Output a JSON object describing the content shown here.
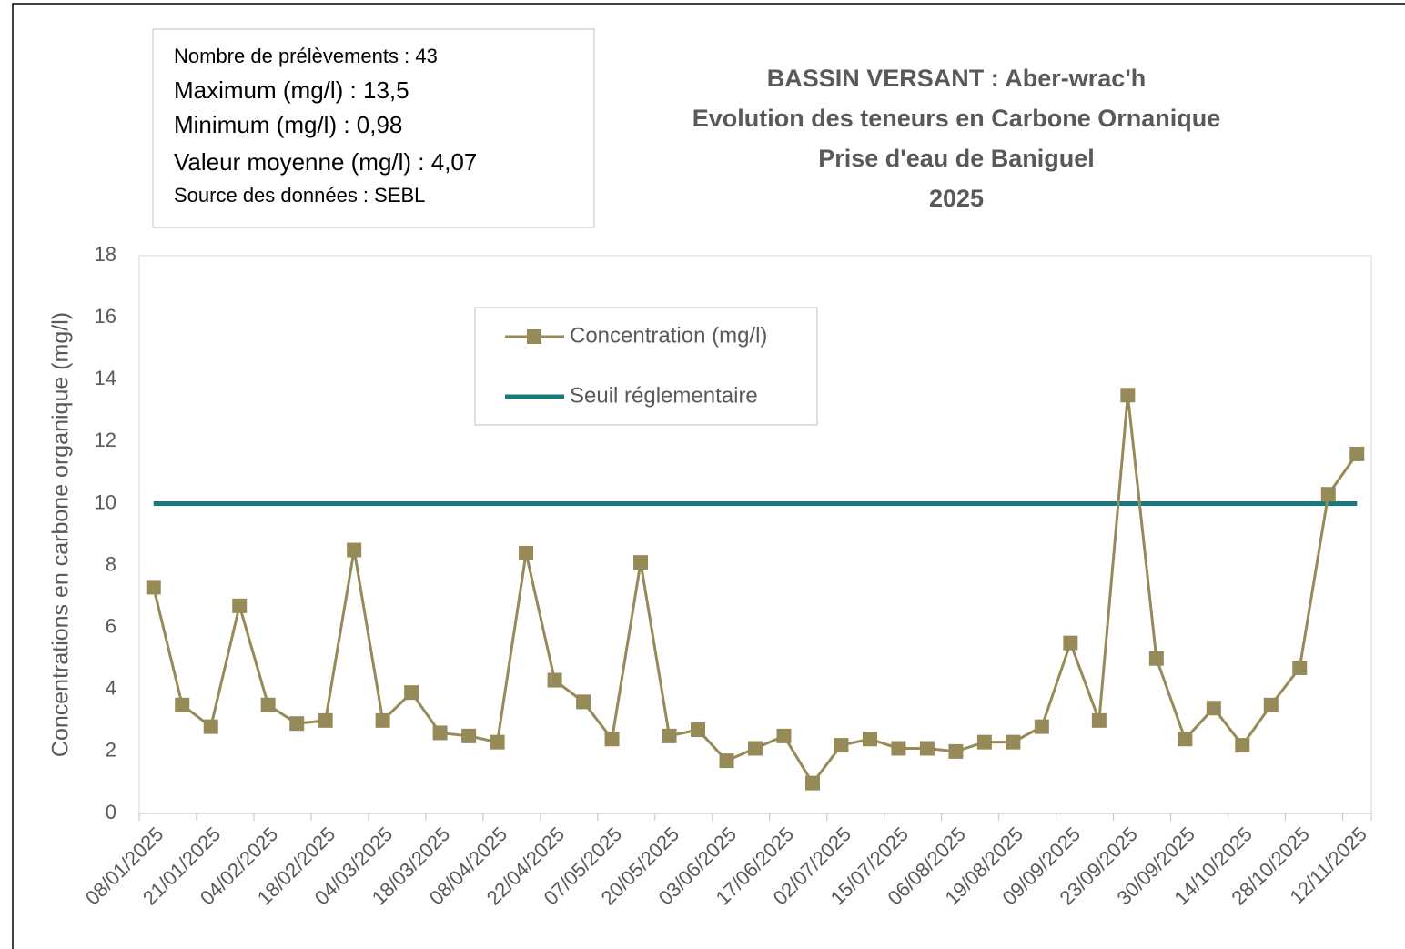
{
  "chart_data": {
    "type": "line",
    "title_lines": [
      "BASSIN VERSANT : Aber-wrac'h",
      "Evolution des teneurs en Carbone Ornanique",
      "Prise d'eau de Baniguel",
      "2025"
    ],
    "info_lines": [
      "Nombre de prélèvements : 43",
      "Maximum (mg/l) : 13,5",
      "Minimum (mg/l)  : 0,98",
      "Valeur moyenne (mg/l)  : 4,07",
      "Source des données : SEBL"
    ],
    "y_label": "Concentrations en carbone organique (mg/l)",
    "categories": [
      "08/01/2025",
      null,
      "21/01/2025",
      null,
      "04/02/2025",
      null,
      "18/02/2025",
      null,
      "04/03/2025",
      null,
      "18/03/2025",
      null,
      "08/04/2025",
      null,
      "22/04/2025",
      null,
      "07/05/2025",
      null,
      "20/05/2025",
      null,
      "03/06/2025",
      null,
      "17/06/2025",
      null,
      "02/07/2025",
      null,
      "15/07/2025",
      null,
      "06/08/2025",
      null,
      "19/08/2025",
      null,
      "09/09/2025",
      null,
      "23/09/2025",
      null,
      "30/09/2025",
      null,
      "14/10/2025",
      null,
      "28/10/2025",
      null,
      "12/11/2025"
    ],
    "series": [
      {
        "name": "Concentration (mg/l)",
        "color": "#968a58",
        "marker": "square",
        "values": [
          7.3,
          3.5,
          2.8,
          6.7,
          3.5,
          2.9,
          3.0,
          8.5,
          3.0,
          3.9,
          2.6,
          2.5,
          2.3,
          8.4,
          4.3,
          3.6,
          2.4,
          8.1,
          2.5,
          2.7,
          1.7,
          2.1,
          2.5,
          0.98,
          2.2,
          2.4,
          2.1,
          2.1,
          2.0,
          2.3,
          2.3,
          2.8,
          5.5,
          3.0,
          13.5,
          5.0,
          2.4,
          3.4,
          2.2,
          3.5,
          4.7,
          10.3,
          11.6
        ]
      },
      {
        "name": "Seuil réglementaire",
        "color": "#17797a",
        "values": [
          10,
          10,
          10,
          10,
          10,
          10,
          10,
          10,
          10,
          10,
          10,
          10,
          10,
          10,
          10,
          10,
          10,
          10,
          10,
          10,
          10,
          10,
          10,
          10,
          10,
          10,
          10,
          10,
          10,
          10,
          10,
          10,
          10,
          10,
          10,
          10,
          10,
          10,
          10,
          10,
          10,
          10,
          10
        ]
      }
    ],
    "ylim": [
      0,
      18
    ],
    "yticks": [
      0,
      2,
      4,
      6,
      8,
      10,
      12,
      14,
      16,
      18
    ],
    "grid": false
  }
}
